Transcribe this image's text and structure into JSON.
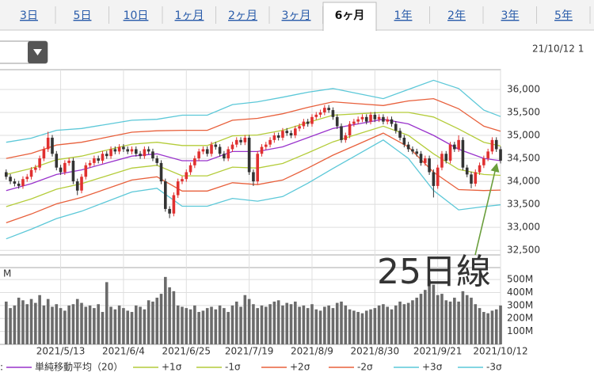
{
  "tabs": {
    "items": [
      "3日",
      "5日",
      "10日",
      "1ヶ月",
      "2ヶ月",
      "3ヶ月",
      "6ヶ月",
      "1年",
      "2年",
      "3年",
      "5年"
    ],
    "selected": 6
  },
  "timestamp": "21/10/12 1",
  "chart_data": {
    "type": "candlestick",
    "up_color": "#e03030",
    "down_color": "#333333",
    "ylim": [
      32400,
      36430
    ],
    "yticks": [
      {
        "value": 32500,
        "label": "32,500"
      },
      {
        "value": 33000,
        "label": "33,000"
      },
      {
        "value": 33500,
        "label": "33,500"
      },
      {
        "value": 34000,
        "label": "34,000"
      },
      {
        "value": 34500,
        "label": "34,500"
      },
      {
        "value": 35000,
        "label": "35,000"
      },
      {
        "value": 35500,
        "label": "35,500"
      },
      {
        "value": 36000,
        "label": "36,000"
      }
    ],
    "grid": true,
    "categories": [
      null,
      null,
      null,
      null,
      null,
      null,
      null,
      null,
      null,
      null,
      null,
      null,
      null,
      "2021/5/13",
      null,
      null,
      null,
      null,
      null,
      null,
      null,
      null,
      null,
      null,
      null,
      null,
      null,
      null,
      "2021/6/4",
      null,
      null,
      null,
      null,
      null,
      null,
      null,
      null,
      null,
      null,
      null,
      null,
      null,
      null,
      "2021/6/25",
      null,
      null,
      null,
      null,
      null,
      null,
      null,
      null,
      null,
      null,
      null,
      null,
      null,
      null,
      "2021/7/19",
      null,
      null,
      null,
      null,
      null,
      null,
      null,
      null,
      null,
      null,
      null,
      null,
      null,
      null,
      "2021/8/9",
      null,
      null,
      null,
      null,
      null,
      null,
      null,
      null,
      null,
      null,
      null,
      null,
      null,
      null,
      "2021/8/30",
      null,
      null,
      null,
      null,
      null,
      null,
      null,
      null,
      null,
      null,
      null,
      null,
      null,
      null,
      "2021/9/21",
      null,
      null,
      null,
      null,
      null,
      null,
      null,
      null,
      null,
      null,
      null,
      null,
      null,
      null,
      "2021/10/12"
    ],
    "ohlc": [
      [
        34200,
        34260,
        34040,
        34100
      ],
      [
        34100,
        34160,
        33940,
        34000
      ],
      [
        34000,
        34060,
        33890,
        33950
      ],
      [
        33950,
        34010,
        33840,
        33900
      ],
      [
        33900,
        34110,
        33840,
        34050
      ],
      [
        34050,
        34160,
        33990,
        34100
      ],
      [
        34100,
        34310,
        34040,
        34250
      ],
      [
        34250,
        34360,
        34190,
        34300
      ],
      [
        34300,
        34560,
        34240,
        34500
      ],
      [
        34500,
        34760,
        34440,
        34700
      ],
      [
        34700,
        35080,
        34640,
        34950
      ],
      [
        34950,
        35010,
        34540,
        34600
      ],
      [
        34600,
        34660,
        34240,
        34300
      ],
      [
        34300,
        34360,
        34140,
        34200
      ],
      [
        34200,
        34460,
        34140,
        34400
      ],
      [
        34400,
        34510,
        34340,
        34450
      ],
      [
        34450,
        34510,
        33940,
        34000
      ],
      [
        34000,
        34060,
        33700,
        33800
      ],
      [
        33800,
        34160,
        33740,
        34100
      ],
      [
        34100,
        34410,
        34040,
        34350
      ],
      [
        34350,
        34460,
        34290,
        34400
      ],
      [
        34400,
        34560,
        34340,
        34500
      ],
      [
        34500,
        34560,
        34390,
        34450
      ],
      [
        34450,
        34660,
        34390,
        34600
      ],
      [
        34600,
        34660,
        34490,
        34550
      ],
      [
        34550,
        34760,
        34490,
        34700
      ],
      [
        34700,
        34760,
        34590,
        34650
      ],
      [
        34650,
        34810,
        34590,
        34750
      ],
      [
        34750,
        34810,
        34640,
        34700
      ],
      [
        34700,
        34760,
        34590,
        34650
      ],
      [
        34650,
        34760,
        34590,
        34700
      ],
      [
        34700,
        34760,
        34540,
        34600
      ],
      [
        34600,
        34660,
        34490,
        34550
      ],
      [
        34550,
        34760,
        34490,
        34700
      ],
      [
        34700,
        34760,
        34590,
        34650
      ],
      [
        34650,
        34710,
        34440,
        34500
      ],
      [
        34500,
        34560,
        34340,
        34400
      ],
      [
        34400,
        34460,
        33940,
        34000
      ],
      [
        34000,
        34060,
        33340,
        33400
      ],
      [
        33400,
        33460,
        33200,
        33300
      ],
      [
        33300,
        33760,
        33240,
        33700
      ],
      [
        33700,
        34060,
        33640,
        34000
      ],
      [
        34000,
        34110,
        33940,
        34050
      ],
      [
        34050,
        34260,
        33990,
        34200
      ],
      [
        34200,
        34410,
        34140,
        34350
      ],
      [
        34350,
        34560,
        34290,
        34500
      ],
      [
        34500,
        34710,
        34440,
        34650
      ],
      [
        34650,
        34760,
        34590,
        34700
      ],
      [
        34700,
        34760,
        34540,
        34600
      ],
      [
        34600,
        34860,
        34540,
        34800
      ],
      [
        34800,
        34860,
        34690,
        34750
      ],
      [
        34750,
        34810,
        34540,
        34600
      ],
      [
        34600,
        34660,
        34440,
        34500
      ],
      [
        34500,
        34760,
        34440,
        34700
      ],
      [
        34700,
        34860,
        34640,
        34800
      ],
      [
        34800,
        34960,
        34740,
        34900
      ],
      [
        34900,
        34960,
        34790,
        34850
      ],
      [
        34850,
        35010,
        34790,
        34950
      ],
      [
        34950,
        35010,
        34140,
        34200
      ],
      [
        34200,
        34260,
        33900,
        34000
      ],
      [
        34000,
        34660,
        33940,
        34600
      ],
      [
        34600,
        34810,
        34540,
        34750
      ],
      [
        34750,
        34860,
        34690,
        34800
      ],
      [
        34800,
        34960,
        34740,
        34900
      ],
      [
        34900,
        35060,
        34840,
        35000
      ],
      [
        35000,
        35060,
        34890,
        34950
      ],
      [
        34950,
        35160,
        34890,
        35100
      ],
      [
        35100,
        35160,
        34990,
        35050
      ],
      [
        35050,
        35110,
        34940,
        35000
      ],
      [
        35000,
        35210,
        34940,
        35150
      ],
      [
        35150,
        35260,
        35090,
        35200
      ],
      [
        35200,
        35360,
        35140,
        35300
      ],
      [
        35300,
        35360,
        35190,
        35250
      ],
      [
        35250,
        35460,
        35190,
        35400
      ],
      [
        35400,
        35510,
        35340,
        35450
      ],
      [
        35450,
        35560,
        35390,
        35500
      ],
      [
        35500,
        35660,
        35440,
        35600
      ],
      [
        35600,
        35660,
        35490,
        35550
      ],
      [
        35550,
        35610,
        35340,
        35400
      ],
      [
        35400,
        35460,
        35140,
        35200
      ],
      [
        35200,
        35260,
        34840,
        34900
      ],
      [
        34900,
        35060,
        34840,
        35000
      ],
      [
        35000,
        35310,
        34940,
        35250
      ],
      [
        35250,
        35360,
        35190,
        35300
      ],
      [
        35300,
        35410,
        35240,
        35350
      ],
      [
        35350,
        35460,
        35290,
        35400
      ],
      [
        35400,
        35460,
        35240,
        35300
      ],
      [
        35300,
        35510,
        35240,
        35450
      ],
      [
        35450,
        35510,
        35290,
        35350
      ],
      [
        35350,
        35460,
        35290,
        35400
      ],
      [
        35400,
        35460,
        35240,
        35300
      ],
      [
        35300,
        35410,
        35240,
        35350
      ],
      [
        35350,
        35410,
        35190,
        35250
      ],
      [
        35250,
        35310,
        35040,
        35100
      ],
      [
        35100,
        35160,
        34890,
        34950
      ],
      [
        34950,
        35010,
        34740,
        34800
      ],
      [
        34800,
        34860,
        34640,
        34700
      ],
      [
        34700,
        34760,
        34590,
        34650
      ],
      [
        34650,
        34710,
        34540,
        34600
      ],
      [
        34600,
        34660,
        34340,
        34400
      ],
      [
        34400,
        34560,
        34340,
        34500
      ],
      [
        34500,
        34560,
        34140,
        34200
      ],
      [
        34200,
        34260,
        33650,
        33900
      ],
      [
        33900,
        34360,
        33840,
        34300
      ],
      [
        34300,
        34660,
        34240,
        34600
      ],
      [
        34600,
        34660,
        34390,
        34450
      ],
      [
        34450,
        34860,
        34390,
        34800
      ],
      [
        34800,
        34860,
        34640,
        34700
      ],
      [
        34700,
        35000,
        34640,
        34900
      ],
      [
        34900,
        34960,
        34240,
        34300
      ],
      [
        34300,
        34360,
        34090,
        34150
      ],
      [
        34150,
        34210,
        33850,
        33950
      ],
      [
        33950,
        34260,
        33890,
        34200
      ],
      [
        34200,
        34410,
        34140,
        34350
      ],
      [
        34350,
        34560,
        34290,
        34500
      ],
      [
        34500,
        34710,
        34440,
        34650
      ],
      [
        34650,
        34960,
        34590,
        34900
      ],
      [
        34900,
        34960,
        34640,
        34700
      ],
      [
        34700,
        34760,
        34390,
        34450
      ]
    ],
    "bands": {
      "x": [
        0,
        6,
        12,
        18,
        24,
        30,
        36,
        42,
        48,
        54,
        60,
        66,
        72,
        78,
        84,
        90,
        96,
        102,
        108,
        114,
        118
      ],
      "series": [
        {
          "name": "単純移動平均（20）",
          "color": "#9933cc",
          "values": [
            33800,
            33950,
            34150,
            34250,
            34400,
            34550,
            34600,
            34450,
            34450,
            34650,
            34650,
            34750,
            34950,
            35150,
            35250,
            35350,
            35250,
            35000,
            34700,
            34500,
            34450
          ]
        },
        {
          "name": "+1σ",
          "color": "#b4cc3a",
          "values": [
            34150,
            34280,
            34470,
            34550,
            34680,
            34810,
            34850,
            34780,
            34780,
            34990,
            35010,
            35110,
            35280,
            35440,
            35470,
            35500,
            35500,
            35400,
            35140,
            34850,
            34770
          ]
        },
        {
          "name": "-1σ",
          "color": "#b4cc3a",
          "values": [
            33450,
            33620,
            33830,
            33950,
            34120,
            34290,
            34350,
            34120,
            34120,
            34310,
            34290,
            34390,
            34620,
            34860,
            35030,
            35200,
            35000,
            34600,
            34260,
            34150,
            34130
          ]
        },
        {
          "name": "+2σ",
          "color": "#e8603c",
          "values": [
            34500,
            34610,
            34790,
            34850,
            34960,
            35070,
            35100,
            35110,
            35110,
            35330,
            35370,
            35470,
            35610,
            35730,
            35690,
            35650,
            35750,
            35800,
            35580,
            35200,
            35090
          ]
        },
        {
          "name": "-2σ",
          "color": "#e8603c",
          "values": [
            33100,
            33290,
            33510,
            33650,
            33840,
            34030,
            34100,
            33790,
            33790,
            33970,
            33930,
            34030,
            34290,
            34570,
            34810,
            35050,
            34750,
            34200,
            33820,
            33800,
            33810
          ]
        },
        {
          "name": "+3σ",
          "color": "#5cc8d8",
          "values": [
            34850,
            34940,
            35110,
            35150,
            35240,
            35330,
            35350,
            35440,
            35440,
            35670,
            35730,
            35830,
            35940,
            36020,
            35910,
            35800,
            36000,
            36200,
            36020,
            35550,
            35410
          ]
        },
        {
          "name": "-3σ",
          "color": "#5cc8d8",
          "values": [
            32750,
            32960,
            33190,
            33350,
            33560,
            33770,
            33850,
            33460,
            33460,
            33630,
            33570,
            33670,
            33960,
            34280,
            34590,
            34900,
            34500,
            33800,
            33380,
            33450,
            33490
          ]
        }
      ]
    },
    "volume": {
      "unit": "M",
      "color": "#6b6b6b",
      "ylim": [
        0,
        580
      ],
      "yticks": [
        {
          "value": 100,
          "label": "100M"
        },
        {
          "value": 200,
          "label": "200M"
        },
        {
          "value": 300,
          "label": "300M"
        },
        {
          "value": 400,
          "label": "400M"
        },
        {
          "value": 500,
          "label": "500M"
        }
      ],
      "values": [
        330,
        280,
        300,
        360,
        340,
        310,
        350,
        320,
        380,
        300,
        350,
        290,
        310,
        280,
        260,
        300,
        310,
        350,
        320,
        290,
        300,
        280,
        310,
        250,
        480,
        290,
        270,
        300,
        280,
        260,
        250,
        300,
        290,
        270,
        340,
        330,
        360,
        390,
        520,
        440,
        410,
        300,
        290,
        280,
        270,
        300,
        250,
        260,
        280,
        290,
        270,
        300,
        280,
        250,
        300,
        330,
        290,
        380,
        350,
        310,
        280,
        300,
        290,
        310,
        330,
        340,
        300,
        320,
        310,
        330,
        290,
        300,
        280,
        310,
        270,
        260,
        290,
        300,
        280,
        320,
        330,
        300,
        270,
        260,
        250,
        240,
        260,
        270,
        280,
        300,
        310,
        290,
        270,
        300,
        330,
        310,
        320,
        340,
        360,
        390,
        420,
        500,
        460,
        380,
        390,
        340,
        330,
        360,
        330,
        410,
        380,
        360,
        310,
        280,
        250,
        240,
        260,
        270,
        300
      ]
    },
    "legend_marker": ":",
    "annotation": {
      "text": "25日線",
      "color": "#6a9e3c"
    }
  }
}
